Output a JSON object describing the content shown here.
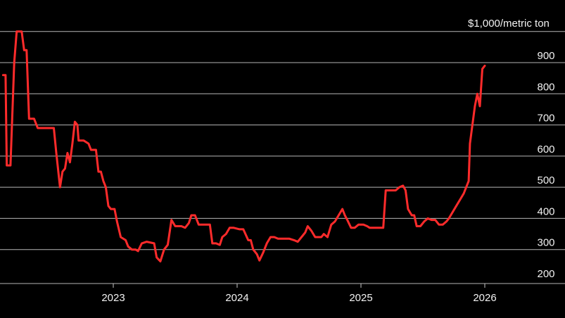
{
  "chart_data": {
    "type": "line",
    "ylabel": "$1,000/metric ton",
    "ylim": [
      180,
      1000
    ],
    "yticks": [
      200,
      300,
      400,
      500,
      600,
      700,
      800,
      900
    ],
    "grid": true,
    "x_ticks": [
      {
        "label": "2023",
        "x": 2023.0
      },
      {
        "label": "2024",
        "x": 2024.0
      },
      {
        "label": "2025",
        "x": 2025.0
      },
      {
        "label": "2026",
        "x": 2026.0
      }
    ],
    "xlim": [
      2022.11,
      2026.66
    ],
    "series": [
      {
        "color": "#ff2b2b",
        "points": [
          [
            2022.11,
            860
          ],
          [
            2022.13,
            860
          ],
          [
            2022.14,
            570
          ],
          [
            2022.17,
            570
          ],
          [
            2022.2,
            900
          ],
          [
            2022.22,
            1000
          ],
          [
            2022.26,
            1000
          ],
          [
            2022.28,
            940
          ],
          [
            2022.3,
            940
          ],
          [
            2022.32,
            720
          ],
          [
            2022.34,
            720
          ],
          [
            2022.36,
            720
          ],
          [
            2022.39,
            690
          ],
          [
            2022.43,
            690
          ],
          [
            2022.48,
            690
          ],
          [
            2022.52,
            690
          ],
          [
            2022.54,
            610
          ],
          [
            2022.57,
            500
          ],
          [
            2022.59,
            550
          ],
          [
            2022.61,
            560
          ],
          [
            2022.63,
            610
          ],
          [
            2022.65,
            580
          ],
          [
            2022.67,
            640
          ],
          [
            2022.69,
            710
          ],
          [
            2022.71,
            700
          ],
          [
            2022.72,
            650
          ],
          [
            2022.76,
            650
          ],
          [
            2022.8,
            640
          ],
          [
            2022.82,
            620
          ],
          [
            2022.86,
            620
          ],
          [
            2022.88,
            550
          ],
          [
            2022.9,
            550
          ],
          [
            2022.92,
            520
          ],
          [
            2022.94,
            500
          ],
          [
            2022.96,
            440
          ],
          [
            2022.98,
            430
          ],
          [
            2023.01,
            430
          ],
          [
            2023.03,
            390
          ],
          [
            2023.06,
            340
          ],
          [
            2023.1,
            330
          ],
          [
            2023.12,
            310
          ],
          [
            2023.15,
            300
          ],
          [
            2023.18,
            300
          ],
          [
            2023.2,
            295
          ],
          [
            2023.23,
            320
          ],
          [
            2023.27,
            325
          ],
          [
            2023.33,
            320
          ],
          [
            2023.35,
            275
          ],
          [
            2023.38,
            262
          ],
          [
            2023.41,
            300
          ],
          [
            2023.44,
            315
          ],
          [
            2023.47,
            395
          ],
          [
            2023.5,
            375
          ],
          [
            2023.55,
            375
          ],
          [
            2023.58,
            370
          ],
          [
            2023.61,
            385
          ],
          [
            2023.63,
            410
          ],
          [
            2023.66,
            410
          ],
          [
            2023.69,
            380
          ],
          [
            2023.73,
            380
          ],
          [
            2023.76,
            380
          ],
          [
            2023.78,
            380
          ],
          [
            2023.8,
            320
          ],
          [
            2023.83,
            320
          ],
          [
            2023.86,
            315
          ],
          [
            2023.88,
            340
          ],
          [
            2023.91,
            350
          ],
          [
            2023.94,
            370
          ],
          [
            2023.97,
            370
          ],
          [
            2024.02,
            365
          ],
          [
            2024.05,
            365
          ],
          [
            2024.09,
            330
          ],
          [
            2024.11,
            330
          ],
          [
            2024.13,
            300
          ],
          [
            2024.16,
            285
          ],
          [
            2024.18,
            265
          ],
          [
            2024.21,
            290
          ],
          [
            2024.24,
            320
          ],
          [
            2024.27,
            340
          ],
          [
            2024.3,
            340
          ],
          [
            2024.33,
            335
          ],
          [
            2024.37,
            335
          ],
          [
            2024.42,
            335
          ],
          [
            2024.46,
            330
          ],
          [
            2024.49,
            325
          ],
          [
            2024.52,
            340
          ],
          [
            2024.55,
            355
          ],
          [
            2024.57,
            375
          ],
          [
            2024.6,
            360
          ],
          [
            2024.63,
            340
          ],
          [
            2024.66,
            340
          ],
          [
            2024.68,
            340
          ],
          [
            2024.7,
            350
          ],
          [
            2024.73,
            340
          ],
          [
            2024.76,
            380
          ],
          [
            2024.79,
            390
          ],
          [
            2024.82,
            410
          ],
          [
            2024.85,
            430
          ],
          [
            2024.87,
            410
          ],
          [
            2024.89,
            395
          ],
          [
            2024.92,
            370
          ],
          [
            2024.95,
            370
          ],
          [
            2024.98,
            380
          ],
          [
            2025.02,
            380
          ],
          [
            2025.05,
            375
          ],
          [
            2025.07,
            370
          ],
          [
            2025.1,
            370
          ],
          [
            2025.14,
            370
          ],
          [
            2025.18,
            370
          ],
          [
            2025.2,
            490
          ],
          [
            2025.24,
            490
          ],
          [
            2025.28,
            490
          ],
          [
            2025.31,
            500
          ],
          [
            2025.34,
            505
          ],
          [
            2025.36,
            490
          ],
          [
            2025.38,
            430
          ],
          [
            2025.41,
            410
          ],
          [
            2025.43,
            410
          ],
          [
            2025.45,
            375
          ],
          [
            2025.48,
            375
          ],
          [
            2025.51,
            390
          ],
          [
            2025.54,
            400
          ],
          [
            2025.57,
            395
          ],
          [
            2025.6,
            395
          ],
          [
            2025.63,
            380
          ],
          [
            2025.66,
            380
          ],
          [
            2025.69,
            390
          ],
          [
            2025.71,
            400
          ],
          [
            2025.74,
            420
          ],
          [
            2025.77,
            440
          ],
          [
            2025.8,
            460
          ],
          [
            2025.83,
            480
          ],
          [
            2025.85,
            500
          ],
          [
            2025.87,
            520
          ],
          [
            2025.88,
            640
          ],
          [
            2025.9,
            700
          ],
          [
            2025.92,
            760
          ],
          [
            2025.94,
            800
          ],
          [
            2025.96,
            760
          ],
          [
            2025.98,
            880
          ],
          [
            2026.0,
            890
          ]
        ]
      }
    ]
  }
}
